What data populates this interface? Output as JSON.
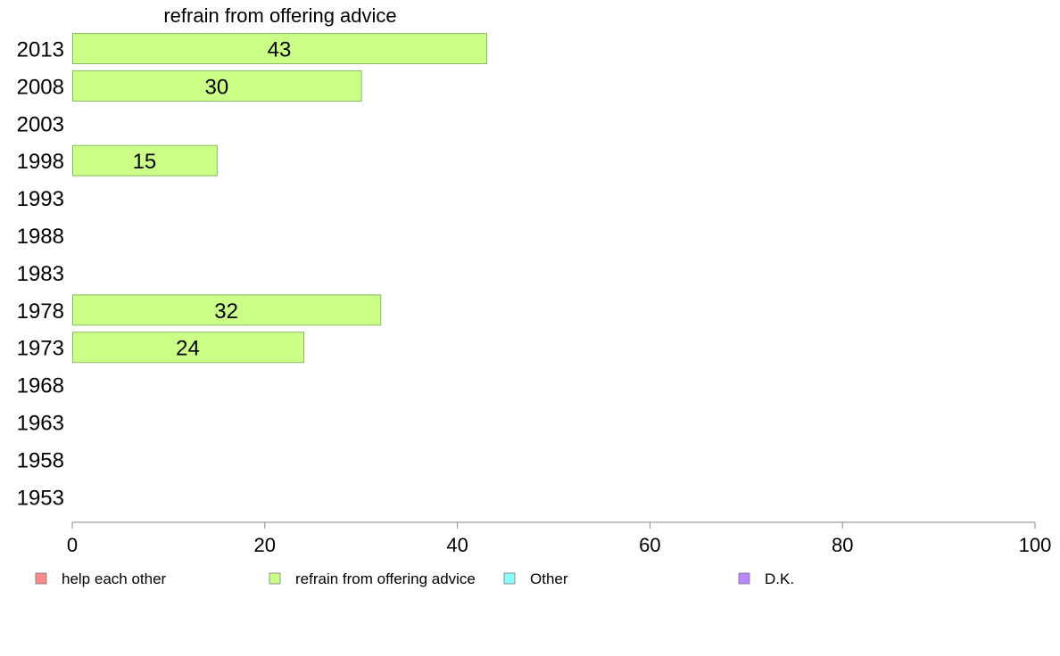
{
  "chart_data": {
    "type": "bar",
    "orientation": "horizontal",
    "title": "refrain from offering advice",
    "categories": [
      "2013",
      "2008",
      "2003",
      "1998",
      "1993",
      "1988",
      "1983",
      "1978",
      "1973",
      "1968",
      "1963",
      "1958",
      "1953"
    ],
    "series": [
      {
        "name": "refrain from offering advice",
        "color": "#ccff88",
        "values": [
          43,
          30,
          null,
          15,
          null,
          null,
          null,
          32,
          24,
          null,
          null,
          null,
          null
        ]
      }
    ],
    "xlim": [
      0,
      100
    ],
    "xticks": [
      "0",
      "20",
      "40",
      "60",
      "80",
      "100"
    ],
    "grid": false,
    "legend": {
      "position": "bottom",
      "entries": [
        {
          "label": "help each other",
          "color": "#ff8888"
        },
        {
          "label": "refrain from offering advice",
          "color": "#ccff88"
        },
        {
          "label": "Other",
          "color": "#88ffff"
        },
        {
          "label": "D.K.",
          "color": "#bb88ff"
        }
      ]
    }
  }
}
